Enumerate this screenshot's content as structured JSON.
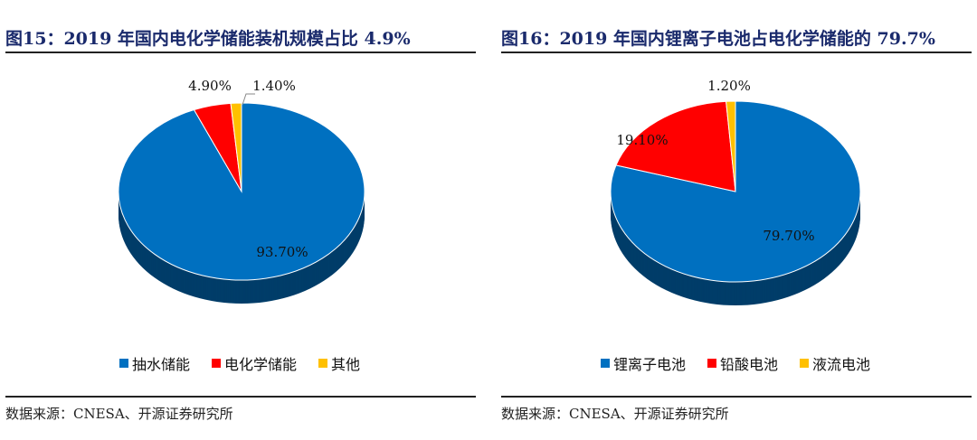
{
  "chart_data": [
    {
      "type": "pie",
      "title": "图15：2019 年国内电化学储能装机规模占比 4.9%",
      "categories": [
        "抽水储能",
        "电化学储能",
        "其他"
      ],
      "values": [
        93.7,
        4.9,
        1.4
      ],
      "labels": [
        "93.70%",
        "4.90%",
        "1.40%"
      ],
      "colors": [
        "#0070c0",
        "#ff0000",
        "#ffc000"
      ],
      "legend": "bottom",
      "source": "数据来源：CNESA、开源证券研究所"
    },
    {
      "type": "pie",
      "title": "图16：2019 年国内锂离子电池占电化学储能的 79.7%",
      "categories": [
        "锂离子电池",
        "铅酸电池",
        "液流电池"
      ],
      "values": [
        79.7,
        19.1,
        1.2
      ],
      "labels": [
        "79.70%",
        "19.10%",
        "1.20%"
      ],
      "colors": [
        "#0070c0",
        "#ff0000",
        "#ffc000"
      ],
      "legend": "bottom",
      "source": "数据来源：CNESA、开源证券研究所"
    }
  ]
}
